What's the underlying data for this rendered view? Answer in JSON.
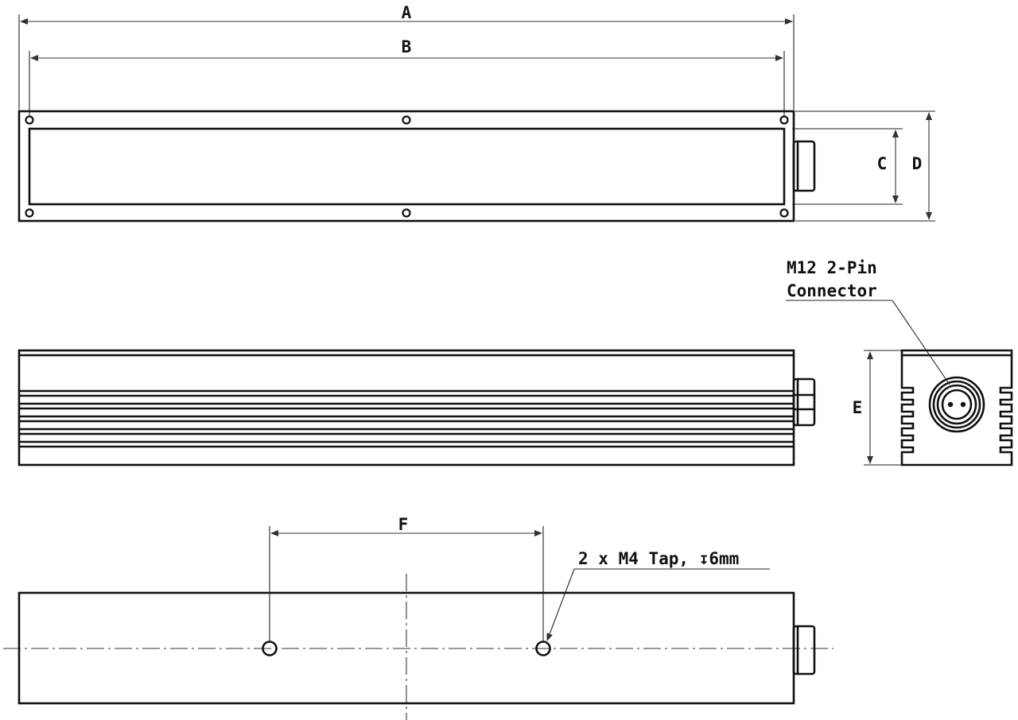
{
  "dimensions": {
    "a": "A",
    "b": "B",
    "c": "C",
    "d": "D",
    "e": "E",
    "f": "F"
  },
  "notes": {
    "connector_line1": "M12 2-Pin",
    "connector_line2": "Connector",
    "tap_note": "2 x M4 Tap, ↧6mm"
  }
}
